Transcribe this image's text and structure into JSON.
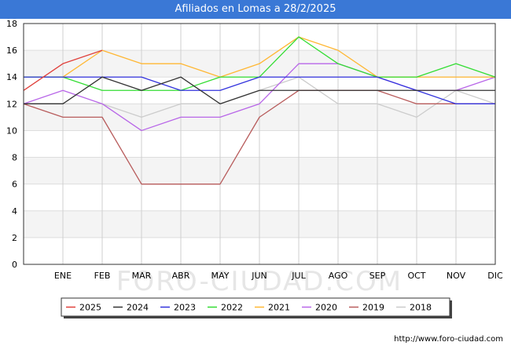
{
  "header": {
    "title": "Afiliados en Lomas a 28/2/2025"
  },
  "credit": "http://www.foro-ciudad.com",
  "watermark": "FORO-CIUDAD.COM",
  "chart_data": {
    "type": "line",
    "title": "Afiliados en Lomas a 28/2/2025",
    "xlabel": "",
    "ylabel": "",
    "x": [
      "",
      "ENE",
      "FEB",
      "MAR",
      "ABR",
      "MAY",
      "JUN",
      "JUL",
      "AGO",
      "SEP",
      "OCT",
      "NOV",
      "DIC"
    ],
    "ylim": [
      0,
      18
    ],
    "yticks": [
      0,
      2,
      4,
      6,
      8,
      10,
      12,
      14,
      16,
      18
    ],
    "grid": true,
    "legend_position": "bottom",
    "series": [
      {
        "name": "2025",
        "color": "#e0403b",
        "values": [
          13,
          15,
          16,
          null,
          null,
          null,
          null,
          null,
          null,
          null,
          null,
          null,
          null
        ]
      },
      {
        "name": "2024",
        "color": "#333333",
        "values": [
          12,
          12,
          14,
          13,
          14,
          12,
          13,
          13,
          13,
          13,
          13,
          13,
          13
        ]
      },
      {
        "name": "2023",
        "color": "#3333dd",
        "values": [
          14,
          14,
          14,
          14,
          13,
          13,
          14,
          14,
          14,
          14,
          13,
          12,
          12
        ]
      },
      {
        "name": "2022",
        "color": "#33dd33",
        "values": [
          14,
          14,
          13,
          13,
          13,
          14,
          14,
          17,
          15,
          14,
          14,
          15,
          14
        ]
      },
      {
        "name": "2021",
        "color": "#ffb733",
        "values": [
          14,
          14,
          16,
          15,
          15,
          14,
          15,
          17,
          16,
          14,
          14,
          14,
          14
        ]
      },
      {
        "name": "2020",
        "color": "#b866e8",
        "values": [
          12,
          13,
          12,
          10,
          11,
          11,
          12,
          15,
          15,
          14,
          13,
          13,
          14
        ]
      },
      {
        "name": "2019",
        "color": "#b85c5c",
        "values": [
          12,
          11,
          11,
          6,
          6,
          6,
          11,
          13,
          13,
          13,
          12,
          12,
          12
        ]
      },
      {
        "name": "2018",
        "color": "#cccccc",
        "values": [
          12,
          12,
          12,
          11,
          12,
          12,
          13,
          14,
          12,
          12,
          11,
          13,
          12
        ]
      }
    ]
  }
}
